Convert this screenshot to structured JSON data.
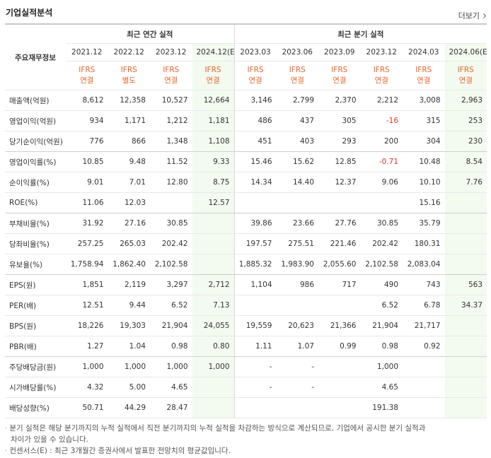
{
  "header": {
    "title": "기업실적분석",
    "more": "더보기"
  },
  "table": {
    "corner": "주요재무정보",
    "groups": [
      {
        "label": "최근 연간 실적",
        "span": 4
      },
      {
        "label": "최근 분기 실적",
        "span": 6
      }
    ],
    "periods": [
      "2021.12",
      "2022.12",
      "2023.12",
      "2024.12(E)",
      "2023.03",
      "2023.06",
      "2023.09",
      "2023.12",
      "2024.03",
      "2024.06(E)"
    ],
    "estimate": [
      false,
      false,
      false,
      true,
      false,
      false,
      false,
      false,
      false,
      true
    ],
    "standards": [
      [
        "IFRS",
        "연결"
      ],
      [
        "IFRS",
        "별도"
      ],
      [
        "IFRS",
        "연결"
      ],
      [
        "IFRS",
        "연결"
      ],
      [
        "IFRS",
        "연결"
      ],
      [
        "IFRS",
        "연결"
      ],
      [
        "IFRS",
        "연결"
      ],
      [
        "IFRS",
        "연결"
      ],
      [
        "IFRS",
        "연결"
      ],
      [
        "IFRS",
        "연결"
      ]
    ],
    "rows": [
      {
        "label": "매출액(억원)",
        "values": [
          "8,612",
          "12,358",
          "10,527",
          "12,664",
          "3,146",
          "2,799",
          "2,370",
          "2,212",
          "3,008",
          "2,963"
        ]
      },
      {
        "label": "영업이익(억원)",
        "values": [
          "934",
          "1,171",
          "1,212",
          "1,181",
          "486",
          "437",
          "305",
          "-16",
          "315",
          "253"
        ]
      },
      {
        "label": "당기순이익(억원)",
        "values": [
          "776",
          "866",
          "1,348",
          "1,108",
          "451",
          "403",
          "293",
          "200",
          "304",
          "230"
        ],
        "group_end": true
      },
      {
        "label": "영업이익률(%)",
        "values": [
          "10.85",
          "9.48",
          "11.52",
          "9.33",
          "15.46",
          "15.62",
          "12.85",
          "-0.71",
          "10.48",
          "8.54"
        ]
      },
      {
        "label": "순이익률(%)",
        "values": [
          "9.01",
          "7.01",
          "12.80",
          "8.75",
          "14.34",
          "14.40",
          "12.37",
          "9.06",
          "10.10",
          "7.76"
        ]
      },
      {
        "label": "ROE(%)",
        "values": [
          "11.06",
          "12.03",
          null,
          "12.57",
          null,
          null,
          null,
          null,
          "15.16",
          null
        ],
        "group_end": true
      },
      {
        "label": "부채비율(%)",
        "values": [
          "31.92",
          "27.16",
          "30.85",
          null,
          "39.86",
          "23.66",
          "27.76",
          "30.85",
          "35.79",
          null
        ]
      },
      {
        "label": "당좌비율(%)",
        "values": [
          "257.25",
          "265.03",
          "202.42",
          null,
          "197.57",
          "275.51",
          "221.46",
          "202.42",
          "180.31",
          null
        ]
      },
      {
        "label": "유보율(%)",
        "values": [
          "1,758.94",
          "1,862.40",
          "2,102.58",
          null,
          "1,885.32",
          "1,983.90",
          "2,055.60",
          "2,102.58",
          "2,083.04",
          null
        ],
        "group_end": true
      },
      {
        "label": "EPS(원)",
        "values": [
          "1,851",
          "2,119",
          "3,297",
          "2,712",
          "1,104",
          "986",
          "717",
          "490",
          "743",
          "563"
        ]
      },
      {
        "label": "PER(배)",
        "values": [
          "12.51",
          "9.44",
          "6.52",
          "7.13",
          null,
          null,
          null,
          "6.52",
          "6.78",
          "34.37"
        ]
      },
      {
        "label": "BPS(원)",
        "values": [
          "18,226",
          "19,303",
          "21,904",
          "24,055",
          "19,559",
          "20,623",
          "21,366",
          "21,904",
          "21,717",
          null
        ]
      },
      {
        "label": "PBR(배)",
        "values": [
          "1.27",
          "1.04",
          "0.98",
          "0.80",
          "1.11",
          "1.07",
          "0.99",
          "0.98",
          "0.92",
          null
        ],
        "group_end": true
      },
      {
        "label": "주당배당금(원)",
        "values": [
          "1,000",
          "1,000",
          "1,000",
          "1,000",
          "-",
          "-",
          null,
          "1,000",
          null,
          null
        ]
      },
      {
        "label": "시가배당률(%)",
        "values": [
          "4.32",
          "5.00",
          "4.65",
          null,
          "-",
          "-",
          null,
          "4.65",
          null,
          null
        ]
      },
      {
        "label": "배당성향(%)",
        "values": [
          "50.71",
          "44.29",
          "28.47",
          null,
          null,
          null,
          null,
          "191.38",
          null,
          null
        ]
      }
    ]
  },
  "notes": [
    "분기 실적은 해당 분기까지의 누적 실적에서 직전 분기까지의 누적 실적을 차감하는 방식으로 계산되므로, 기업에서 공시한 분기 실적과 차이가 있을 수 있습니다.",
    "컨센서스(E) : 최근 3개월간 증권사에서 발표한 전망치의 평균값입니다."
  ]
}
